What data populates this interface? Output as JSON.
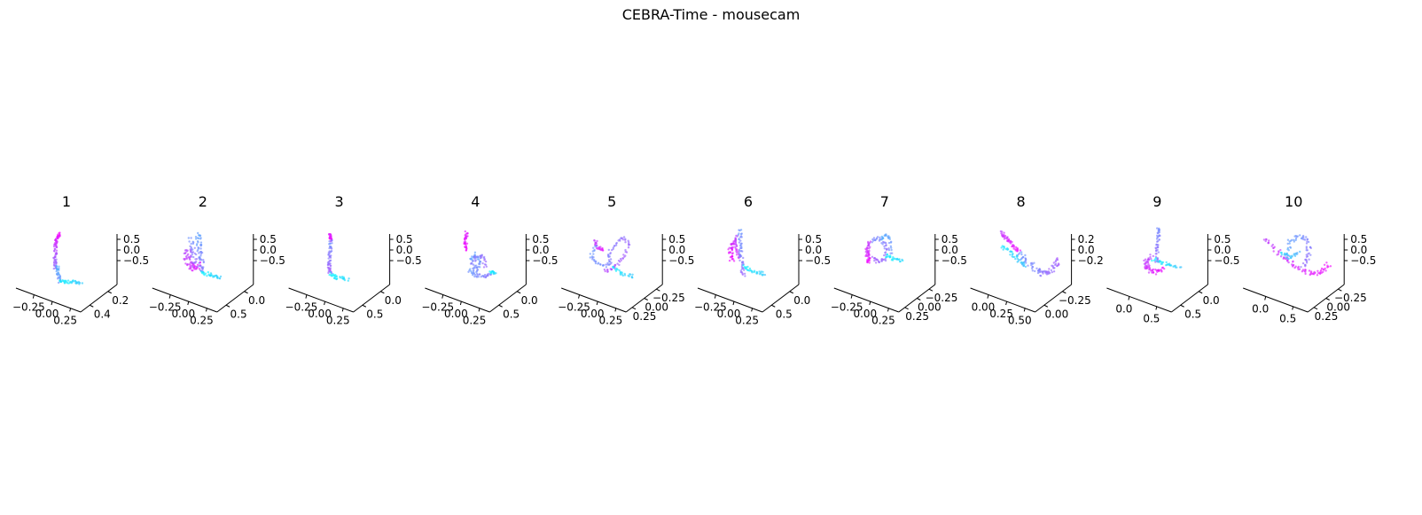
{
  "figure": {
    "title": "CEBRA-Time - mousecam",
    "colors": [
      "#00ffff",
      "#ff00ff"
    ]
  },
  "chart_data": [
    {
      "type": "scatter",
      "title": "1",
      "x_ticks": [
        "−0.25",
        "0.00",
        "0.25"
      ],
      "y_ticks": [
        "0.2",
        "0.4"
      ],
      "z_ticks": [
        "0.5",
        "0.0",
        "−0.5"
      ],
      "strokes": [
        {
          "pts": [
            [
              0.3,
              0.64
            ],
            [
              0.3,
              0.5
            ],
            [
              0.31,
              0.3
            ],
            [
              0.32,
              0.2
            ],
            [
              0.35,
              0.12
            ]
          ],
          "c0": 0.55,
          "c1": 0.95,
          "n": 80,
          "spread": 0.02
        },
        {
          "pts": [
            [
              0.33,
              0.6
            ],
            [
              0.34,
              0.72
            ],
            [
              0.36,
              0.84
            ]
          ],
          "c0": 0.3,
          "c1": 0.45,
          "n": 30,
          "spread": 0.02
        },
        {
          "pts": [
            [
              0.36,
              0.84
            ],
            [
              0.5,
              0.84
            ],
            [
              0.62,
              0.86
            ]
          ],
          "c0": 0.05,
          "c1": 0.2,
          "n": 35,
          "spread": 0.025
        }
      ]
    },
    {
      "type": "scatter",
      "title": "2",
      "x_ticks": [
        "−0.25",
        "0.00",
        "0.25"
      ],
      "y_ticks": [
        "0.0",
        "0.5"
      ],
      "z_ticks": [
        "0.5",
        "0.0",
        "−0.5"
      ],
      "strokes": [
        {
          "pts": [
            [
              0.26,
              0.34
            ],
            [
              0.25,
              0.46
            ],
            [
              0.27,
              0.58
            ],
            [
              0.33,
              0.64
            ],
            [
              0.4,
              0.56
            ]
          ],
          "c0": 0.7,
          "c1": 0.92,
          "n": 60,
          "spread": 0.045
        },
        {
          "pts": [
            [
              0.38,
              0.12
            ],
            [
              0.4,
              0.3
            ],
            [
              0.42,
              0.5
            ],
            [
              0.44,
              0.7
            ]
          ],
          "c0": 0.35,
          "c1": 0.55,
          "n": 55,
          "spread": 0.035
        },
        {
          "pts": [
            [
              0.3,
              0.2
            ],
            [
              0.33,
              0.4
            ],
            [
              0.35,
              0.6
            ]
          ],
          "c0": 0.45,
          "c1": 0.6,
          "n": 30,
          "spread": 0.035
        },
        {
          "pts": [
            [
              0.44,
              0.7
            ],
            [
              0.55,
              0.74
            ],
            [
              0.66,
              0.78
            ]
          ],
          "c0": 0.05,
          "c1": 0.2,
          "n": 30,
          "spread": 0.025
        }
      ]
    },
    {
      "type": "scatter",
      "title": "3",
      "x_ticks": [
        "−0.25",
        "0.00",
        "0.25"
      ],
      "y_ticks": [
        "0.0",
        "0.5"
      ],
      "z_ticks": [
        "0.5",
        "0.0",
        "−0.5"
      ],
      "strokes": [
        {
          "pts": [
            [
              0.33,
              0.12
            ],
            [
              0.34,
              0.22
            ]
          ],
          "c0": 0.85,
          "c1": 0.95,
          "n": 25,
          "spread": 0.015
        },
        {
          "pts": [
            [
              0.34,
              0.22
            ],
            [
              0.33,
              0.4
            ],
            [
              0.32,
              0.58
            ],
            [
              0.33,
              0.72
            ]
          ],
          "c0": 0.45,
          "c1": 0.65,
          "n": 55,
          "spread": 0.02
        },
        {
          "pts": [
            [
              0.33,
              0.72
            ],
            [
              0.42,
              0.78
            ],
            [
              0.55,
              0.8
            ]
          ],
          "c0": 0.05,
          "c1": 0.15,
          "n": 30,
          "spread": 0.025
        }
      ]
    },
    {
      "type": "scatter",
      "title": "4",
      "x_ticks": [
        "−0.25",
        "0.00",
        "0.25"
      ],
      "y_ticks": [
        "0.0",
        "0.5"
      ],
      "z_ticks": [
        "0.5",
        "0.0",
        "−0.5"
      ],
      "strokes": [
        {
          "pts": [
            [
              0.33,
              0.1
            ],
            [
              0.32,
              0.22
            ],
            [
              0.32,
              0.36
            ]
          ],
          "c0": 0.85,
          "c1": 0.95,
          "n": 35,
          "spread": 0.02
        },
        {
          "pts": [
            [
              0.38,
              0.5
            ],
            [
              0.45,
              0.42
            ],
            [
              0.5,
              0.55
            ],
            [
              0.46,
              0.68
            ],
            [
              0.4,
              0.58
            ],
            [
              0.46,
              0.46
            ],
            [
              0.54,
              0.46
            ],
            [
              0.56,
              0.62
            ]
          ],
          "c0": 0.35,
          "c1": 0.6,
          "n": 70,
          "spread": 0.025
        },
        {
          "pts": [
            [
              0.36,
              0.66
            ],
            [
              0.45,
              0.74
            ],
            [
              0.55,
              0.76
            ],
            [
              0.62,
              0.72
            ]
          ],
          "c0": 0.4,
          "c1": 0.55,
          "n": 35,
          "spread": 0.025
        },
        {
          "pts": [
            [
              0.62,
              0.7
            ],
            [
              0.7,
              0.7
            ]
          ],
          "c0": 0.05,
          "c1": 0.15,
          "n": 15,
          "spread": 0.02
        }
      ]
    },
    {
      "type": "scatter",
      "title": "5",
      "x_ticks": [
        "−0.25",
        "0.00",
        "0.25"
      ],
      "y_ticks": [
        "−0.25",
        "0.00",
        "0.25"
      ],
      "z_ticks": [
        "0.5",
        "0.0",
        "−0.5"
      ],
      "strokes": [
        {
          "pts": [
            [
              0.24,
              0.22
            ],
            [
              0.26,
              0.32
            ],
            [
              0.34,
              0.36
            ]
          ],
          "c0": 0.75,
          "c1": 0.9,
          "n": 25,
          "spread": 0.02
        },
        {
          "pts": [
            [
              0.24,
              0.3
            ],
            [
              0.18,
              0.45
            ],
            [
              0.24,
              0.56
            ],
            [
              0.36,
              0.6
            ],
            [
              0.44,
              0.54
            ],
            [
              0.4,
              0.42
            ],
            [
              0.48,
              0.28
            ],
            [
              0.58,
              0.18
            ],
            [
              0.66,
              0.26
            ],
            [
              0.6,
              0.44
            ],
            [
              0.52,
              0.58
            ],
            [
              0.44,
              0.64
            ],
            [
              0.36,
              0.68
            ]
          ],
          "c0": 0.4,
          "c1": 0.7,
          "n": 100,
          "spread": 0.02
        },
        {
          "pts": [
            [
              0.46,
              0.62
            ],
            [
              0.58,
              0.72
            ],
            [
              0.72,
              0.76
            ]
          ],
          "c0": 0.05,
          "c1": 0.2,
          "n": 25,
          "spread": 0.025
        }
      ]
    },
    {
      "type": "scatter",
      "title": "6",
      "x_ticks": [
        "−0.25",
        "0.00",
        "0.25"
      ],
      "y_ticks": [
        "0.0",
        "0.5"
      ],
      "z_ticks": [
        "0.5",
        "0.0",
        "−0.5"
      ],
      "strokes": [
        {
          "pts": [
            [
              0.26,
              0.22
            ],
            [
              0.22,
              0.36
            ],
            [
              0.24,
              0.52
            ]
          ],
          "c0": 0.8,
          "c1": 0.95,
          "n": 40,
          "spread": 0.03
        },
        {
          "pts": [
            [
              0.3,
              0.14
            ],
            [
              0.29,
              0.3
            ],
            [
              0.32,
              0.48
            ]
          ],
          "c0": 0.7,
          "c1": 0.85,
          "n": 25,
          "spread": 0.015
        },
        {
          "pts": [
            [
              0.34,
              0.06
            ],
            [
              0.34,
              0.3
            ],
            [
              0.36,
              0.52
            ],
            [
              0.38,
              0.74
            ]
          ],
          "c0": 0.4,
          "c1": 0.6,
          "n": 55,
          "spread": 0.025
        },
        {
          "pts": [
            [
              0.38,
              0.6
            ],
            [
              0.46,
              0.66
            ],
            [
              0.56,
              0.7
            ],
            [
              0.64,
              0.72
            ]
          ],
          "c0": 0.05,
          "c1": 0.2,
          "n": 30,
          "spread": 0.025
        }
      ]
    },
    {
      "type": "scatter",
      "title": "7",
      "x_ticks": [
        "−0.25",
        "0.00",
        "0.25"
      ],
      "y_ticks": [
        "−0.25",
        "0.00",
        "0.25"
      ],
      "z_ticks": [
        "0.5",
        "0.0",
        "−0.5"
      ],
      "strokes": [
        {
          "pts": [
            [
              0.26,
              0.25
            ],
            [
              0.22,
              0.4
            ],
            [
              0.25,
              0.55
            ]
          ],
          "c0": 0.75,
          "c1": 0.95,
          "n": 45,
          "spread": 0.025
        },
        {
          "pts": [
            [
              0.28,
              0.22
            ],
            [
              0.36,
              0.18
            ],
            [
              0.44,
              0.26
            ],
            [
              0.48,
              0.36
            ],
            [
              0.44,
              0.5
            ],
            [
              0.36,
              0.54
            ],
            [
              0.3,
              0.48
            ]
          ],
          "c0": 0.45,
          "c1": 0.65,
          "n": 55,
          "spread": 0.025
        },
        {
          "pts": [
            [
              0.4,
              0.2
            ],
            [
              0.46,
              0.12
            ],
            [
              0.52,
              0.22
            ],
            [
              0.52,
              0.42
            ]
          ],
          "c0": 0.3,
          "c1": 0.45,
          "n": 25,
          "spread": 0.02
        },
        {
          "pts": [
            [
              0.46,
              0.44
            ],
            [
              0.56,
              0.5
            ],
            [
              0.66,
              0.52
            ]
          ],
          "c0": 0.05,
          "c1": 0.15,
          "n": 25,
          "spread": 0.02
        }
      ]
    },
    {
      "type": "scatter",
      "title": "8",
      "x_ticks": [
        "0.00",
        "0.25",
        "0.50"
      ],
      "y_ticks": [
        "−0.25",
        "0.00"
      ],
      "z_ticks": [
        "0.2",
        "0.0",
        "−0.2"
      ],
      "strokes": [
        {
          "pts": [
            [
              0.2,
              0.1
            ],
            [
              0.26,
              0.18
            ],
            [
              0.34,
              0.28
            ],
            [
              0.42,
              0.38
            ]
          ],
          "c0": 0.75,
          "c1": 0.95,
          "n": 45,
          "spread": 0.025
        },
        {
          "pts": [
            [
              0.42,
              0.4
            ],
            [
              0.52,
              0.52
            ],
            [
              0.62,
              0.64
            ],
            [
              0.7,
              0.72
            ],
            [
              0.78,
              0.7
            ],
            [
              0.86,
              0.62
            ],
            [
              0.9,
              0.5
            ]
          ],
          "c0": 0.4,
          "c1": 0.65,
          "n": 80,
          "spread": 0.04
        },
        {
          "pts": [
            [
              0.2,
              0.3
            ],
            [
              0.32,
              0.4
            ],
            [
              0.42,
              0.52
            ],
            [
              0.5,
              0.6
            ]
          ],
          "c0": 0.1,
          "c1": 0.25,
          "n": 40,
          "spread": 0.025
        }
      ]
    },
    {
      "type": "scatter",
      "title": "9",
      "x_ticks": [
        "0.0",
        "0.5"
      ],
      "y_ticks": [
        "0.0",
        "0.5"
      ],
      "z_ticks": [
        "0.5",
        "0.0",
        "−0.5"
      ],
      "strokes": [
        {
          "pts": [
            [
              0.36,
              0.45
            ],
            [
              0.3,
              0.55
            ],
            [
              0.32,
              0.66
            ],
            [
              0.42,
              0.7
            ],
            [
              0.52,
              0.64
            ]
          ],
          "c0": 0.7,
          "c1": 0.95,
          "n": 60,
          "spread": 0.035
        },
        {
          "pts": [
            [
              0.46,
              0.02
            ],
            [
              0.46,
              0.18
            ],
            [
              0.44,
              0.36
            ],
            [
              0.44,
              0.56
            ]
          ],
          "c0": 0.45,
          "c1": 0.6,
          "n": 45,
          "spread": 0.02
        },
        {
          "pts": [
            [
              0.4,
              0.5
            ],
            [
              0.5,
              0.56
            ],
            [
              0.6,
              0.58
            ],
            [
              0.72,
              0.62
            ]
          ],
          "c0": 0.05,
          "c1": 0.2,
          "n": 30,
          "spread": 0.025
        }
      ]
    },
    {
      "type": "scatter",
      "title": "10",
      "x_ticks": [
        "0.0",
        "0.5"
      ],
      "y_ticks": [
        "−0.25",
        "0.00",
        "0.25"
      ],
      "z_ticks": [
        "0.5",
        "0.0",
        "−0.5"
      ],
      "strokes": [
        {
          "pts": [
            [
              0.08,
              0.2
            ],
            [
              0.22,
              0.36
            ],
            [
              0.36,
              0.52
            ],
            [
              0.5,
              0.64
            ],
            [
              0.66,
              0.72
            ],
            [
              0.8,
              0.68
            ],
            [
              0.88,
              0.58
            ]
          ],
          "c0": 0.75,
          "c1": 0.95,
          "n": 80,
          "spread": 0.035
        },
        {
          "pts": [
            [
              0.36,
              0.44
            ],
            [
              0.4,
              0.24
            ],
            [
              0.5,
              0.16
            ],
            [
              0.6,
              0.18
            ],
            [
              0.64,
              0.34
            ],
            [
              0.62,
              0.5
            ],
            [
              0.56,
              0.6
            ]
          ],
          "c0": 0.35,
          "c1": 0.6,
          "n": 60,
          "spread": 0.03
        },
        {
          "pts": [
            [
              0.3,
              0.4
            ],
            [
              0.4,
              0.48
            ],
            [
              0.5,
              0.4
            ]
          ],
          "c0": 0.15,
          "c1": 0.3,
          "n": 25,
          "spread": 0.025
        }
      ]
    }
  ]
}
